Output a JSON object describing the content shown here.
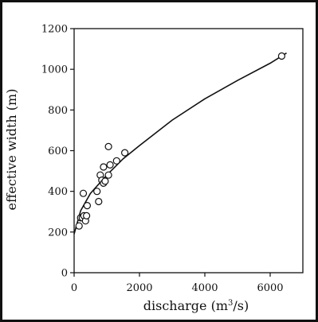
{
  "chart_data": {
    "type": "scatter",
    "title": "",
    "xlabel": "discharge (m",
    "xlabel_sup": "3",
    "xlabel_tail": "/s)",
    "ylabel": "effective width (m)",
    "xlim": [
      0,
      7000
    ],
    "ylim": [
      0,
      1200
    ],
    "xticks": [
      0,
      2000,
      4000,
      6000
    ],
    "yticks": [
      0,
      200,
      400,
      600,
      800,
      1000,
      1200
    ],
    "xtick_labels": [
      "0",
      "2000",
      "4000",
      "6000"
    ],
    "ytick_labels": [
      "0",
      "200",
      "400",
      "600",
      "800",
      "1000",
      "1200"
    ],
    "grid": false,
    "series": [
      {
        "kind": "points",
        "marker": "open-circle",
        "x": [
          150,
          200,
          250,
          280,
          300,
          350,
          380,
          400,
          700,
          750,
          800,
          850,
          900,
          900,
          950,
          1050,
          1050,
          1100,
          1300,
          1550,
          6350
        ],
        "y": [
          230,
          270,
          270,
          390,
          280,
          255,
          280,
          330,
          400,
          350,
          480,
          455,
          440,
          520,
          450,
          620,
          480,
          530,
          550,
          590,
          1065
        ]
      },
      {
        "kind": "fitted-curve",
        "x": [
          0,
          200,
          500,
          1000,
          1500,
          2000,
          3000,
          4000,
          5000,
          6000,
          6500
        ],
        "y": [
          190,
          305,
          390,
          480,
          560,
          625,
          750,
          855,
          945,
          1030,
          1080
        ]
      }
    ]
  },
  "colors": {
    "ink": "#111111",
    "background": "#ffffff",
    "marker_fill": "#ffffff"
  }
}
